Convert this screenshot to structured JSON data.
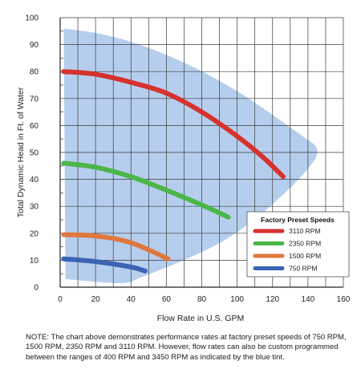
{
  "chart_data": {
    "type": "line",
    "xlabel": "Flow Rate in U.S. GPM",
    "ylabel": "Total Dynamic Head in Ft. of Water",
    "xlim": [
      0,
      160
    ],
    "ylim": [
      0,
      100
    ],
    "xticks": [
      0,
      20,
      40,
      60,
      80,
      100,
      120,
      140,
      160
    ],
    "yticks": [
      0,
      10,
      20,
      30,
      40,
      50,
      60,
      70,
      80,
      90,
      100
    ],
    "grid": true,
    "legend": {
      "title": "Factory Preset Speeds",
      "position": "right",
      "entries": [
        "3110 RPM",
        "2350 RPM",
        "1500 RPM",
        "750 RPM"
      ]
    },
    "range_band": {
      "color": "#a9c6ea",
      "points": [
        [
          2,
          96
        ],
        [
          25,
          94
        ],
        [
          50,
          89
        ],
        [
          75,
          82
        ],
        [
          100,
          73
        ],
        [
          120,
          64
        ],
        [
          137,
          56
        ],
        [
          148,
          51
        ],
        [
          138,
          42
        ],
        [
          124,
          33
        ],
        [
          108,
          24
        ],
        [
          90,
          16
        ],
        [
          70,
          10
        ],
        [
          55,
          6
        ],
        [
          43,
          3
        ],
        [
          37,
          1
        ],
        [
          3,
          3
        ]
      ]
    },
    "series": [
      {
        "name": "3110 RPM",
        "color": "#d7322e",
        "x": [
          2,
          20,
          40,
          60,
          80,
          100,
          115,
          126
        ],
        "y": [
          80,
          79,
          76,
          72,
          65,
          56,
          48,
          41
        ]
      },
      {
        "name": "2350 RPM",
        "color": "#4cb648",
        "x": [
          2,
          20,
          40,
          60,
          80,
          95
        ],
        "y": [
          46,
          44.5,
          41,
          36,
          30.5,
          26
        ]
      },
      {
        "name": "1500 RPM",
        "color": "#e0773f",
        "x": [
          2,
          20,
          40,
          61
        ],
        "y": [
          19.5,
          19,
          16.5,
          10.5
        ]
      },
      {
        "name": "750 RPM",
        "color": "#3a63b4",
        "x": [
          2,
          20,
          40,
          48
        ],
        "y": [
          10.5,
          9.5,
          7.5,
          6
        ]
      }
    ]
  },
  "note": "NOTE: The chart above demonstrates performance rates at factory preset speeds of 750 RPM, 1500 RPM, 2350 RPM and 3110 RPM. However, flow rates can also be custom programmed between the ranges of 400 RPM and 3450 RPM as indicated by the blue tint."
}
